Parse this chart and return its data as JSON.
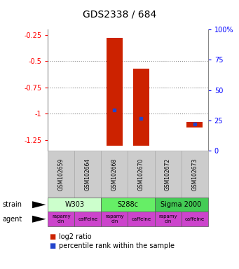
{
  "title": "GDS2338 / 684",
  "samples": [
    "GSM102659",
    "GSM102664",
    "GSM102668",
    "GSM102670",
    "GSM102672",
    "GSM102673"
  ],
  "log2_bar_bottom": [
    0.0,
    0.0,
    -1.3,
    -1.3,
    0.0,
    -1.13
  ],
  "log2_bar_top": [
    0.0,
    0.0,
    -0.28,
    -0.57,
    0.0,
    -1.08
  ],
  "percentile_y": [
    null,
    null,
    -0.965,
    -1.045,
    null,
    -1.095
  ],
  "ylim_left": [
    -1.35,
    -0.2
  ],
  "ylim_right": [
    0,
    100
  ],
  "yticks_left": [
    -1.25,
    -1.0,
    -0.75,
    -0.5,
    -0.25
  ],
  "ytick_labels_left": [
    "-1.25",
    "-1",
    "-0.75",
    "-0.5",
    "-0.25"
  ],
  "yticks_right": [
    0,
    25,
    50,
    75,
    100
  ],
  "ytick_labels_right": [
    "0",
    "25",
    "50",
    "75",
    "100%"
  ],
  "hlines": [
    -0.5,
    -0.75,
    -1.0
  ],
  "strains": [
    {
      "label": "W303",
      "cols": [
        0,
        1
      ],
      "color": "#ccffcc"
    },
    {
      "label": "S288c",
      "cols": [
        2,
        3
      ],
      "color": "#66ee66"
    },
    {
      "label": "Sigma 2000",
      "cols": [
        4,
        5
      ],
      "color": "#44cc55"
    }
  ],
  "agent_labels": [
    "rapamycin",
    "caffeine",
    "rapamycin",
    "caffeine",
    "rapamycin",
    "caffeine"
  ],
  "agent_color": "#cc44cc",
  "sample_box_color": "#cccccc",
  "bar_color": "#cc2200",
  "percentile_color": "#2244cc",
  "bar_width": 0.6,
  "background_color": "#ffffff",
  "title_fontsize": 10,
  "tick_fontsize": 7,
  "sample_fontsize": 5.5,
  "strain_fontsize": 7,
  "agent_fontsize": 5,
  "legend_fontsize": 7,
  "rowlabel_fontsize": 7
}
